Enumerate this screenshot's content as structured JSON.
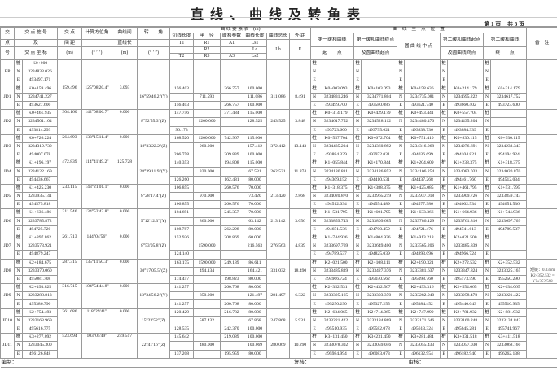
{
  "title": "直线、曲线及转角表",
  "page": {
    "current": "第 1 页",
    "total": "共 3 页"
  },
  "header": {
    "jiao": "交",
    "dian": "点",
    "hao": "号",
    "stake_title": "交 点 桩 号",
    "stake_mid": "及",
    "stake_sub": "交 点 坐 标",
    "dist_title": "交 点",
    "dist_mid": "间 距",
    "dist_unit": "(m)",
    "az_title": "计算方位角",
    "az_unit": "(° ′ ″)",
    "straight_title": "曲线间",
    "straight_mid": "直线长",
    "straight_unit": "(m)",
    "angle_title": "转　　角",
    "angle_unit": "(° ′ ″)",
    "elements_title": "曲 线 要 素 表　(m)",
    "tangent": "切线长度",
    "radius": "半　径",
    "param": "缓和参数",
    "curve_len": "曲线长度",
    "total_len": "曲线总长",
    "external": "外 距",
    "T1": "T1",
    "T2": "T2",
    "R1": "R1",
    "R2": "R2",
    "R3": "R3",
    "A1": "A1",
    "A3": "A3",
    "Ls1": "Ls1",
    "Lc": "Lc",
    "Ls2": "Ls2",
    "Lh": "Lh",
    "E": "E",
    "points_title": "曲　线　主　点　位　置",
    "p1_title": "第一缓和曲线",
    "p1_sub": "起　　点",
    "p2_title": "第一缓和曲线终点",
    "p2_sub": "及圆曲线起点",
    "p3_title": "圆 曲 线 中 点",
    "p4_title": "第二缓和曲线起点",
    "p4_sub": "及圆曲线终点",
    "p5_title": "第二缓和曲线",
    "p5_sub": "终　　点",
    "remark": "备　注"
  },
  "labels": {
    "stake": "桩",
    "n": "N",
    "e": "E"
  },
  "jds": [
    {
      "id": "BP",
      "stake": "K0+000",
      "n": "3234833.026",
      "e": "493497.171",
      "dist": "",
      "az": "",
      "straight": "",
      "angle": "",
      "T1": "",
      "R1": "",
      "A1": "",
      "Ls1": "",
      "R2": "",
      "Lc": "",
      "Lh": "",
      "E": "",
      "T2": "",
      "R3": "",
      "A3": "",
      "Ls2": "",
      "points": [
        [
          "",
          "",
          ""
        ],
        [
          "",
          "",
          ""
        ],
        [
          "",
          "",
          ""
        ],
        [
          "",
          "",
          ""
        ],
        [
          "",
          "",
          ""
        ]
      ],
      "remark": "",
      "showLabels": true
    },
    {
      "id": "JD1",
      "stake": "K0+159.496",
      "n": "3234741.227",
      "e": "493627.600",
      "dist": "159.496",
      "az": "125°08'20.4\"",
      "straight": "3.093",
      "angle": "16°59'46.2\"(Y)",
      "T1": "156.403",
      "R1": "",
      "A1": "266.757",
      "Ls1": "100.000",
      "R2": "711.593",
      "Lc": "111.086",
      "Lh": "311.086",
      "E": "8.491",
      "T2": "156.403",
      "R3": "",
      "A3": "266.757",
      "Ls2": "100.000",
      "points": [
        [
          "K0+003.093",
          "3234831.246",
          "493499.700"
        ],
        [
          "K0+103.093",
          "3234771.804",
          "493580.086"
        ],
        [
          "K0+158.636",
          "3234735.081",
          "493621.740"
        ],
        [
          "K0+214.179",
          "3234695.222",
          "493660.402"
        ],
        [
          "K0+314.179",
          "3234617.752",
          "493723.600"
        ]
      ],
      "remark": ""
    },
    {
      "id": "JD2",
      "stake": "K0+461.935",
      "n": "3234501.104",
      "e": "493814.293",
      "dist": "304.160",
      "az": "142°08'06.7\"",
      "straight": "0.000",
      "angle": "8°52'55.3\"(Z)",
      "T1": "147.756",
      "R1": "",
      "A1": "371.484",
      "Ls1": "115.000",
      "R2": "1200.000",
      "Lc": "128.525",
      "Lh": "243.525",
      "E": "3.848",
      "T2": "96.173",
      "R3": "",
      "A3": "",
      "Ls2": "",
      "points": [
        [
          "K0+314.179",
          "3234617.752",
          "493723.600"
        ],
        [
          "K0+429.179",
          "3234528.112",
          "493795.621"
        ],
        [
          "K0+493.441",
          "3234480.470",
          "493838.736"
        ],
        [
          "K0+557.704",
          "3234435.204",
          "493884.339"
        ],
        [
          "",
          "",
          ""
        ]
      ],
      "remark": ""
    },
    {
      "id": "JD3",
      "stake": "K0+726.224",
      "n": "3234319.730",
      "e": "494007.078",
      "dist": "264.693",
      "az": "133°15'11.4\"",
      "straight": "0.000",
      "angle": "18°33'22.2\"(Z)",
      "T1": "168.520",
      "R1": "1200.000",
      "A1": "742.967",
      "Ls1": "115.000",
      "R2": "960.000",
      "Lc": "157.412",
      "Lh": "372.412",
      "E": "13.143",
      "T2": "206.758",
      "R3": "",
      "A3": "309.839",
      "Ls2": "100.000",
      "points": [
        [
          "K0+557.704",
          "3234435.204",
          "493884.339"
        ],
        [
          "K0+672.704",
          "3234360.892",
          "493972.031"
        ],
        [
          "K0+751.410",
          "3234316.068",
          "494036.699"
        ],
        [
          "K0+830.115",
          "3234276.691",
          "494104.821"
        ],
        [
          "K0+930.115",
          "3234233.343",
          "494194.924"
        ]
      ],
      "remark": ""
    },
    {
      "id": "JD4",
      "stake": "K1+196.197",
      "n": "3234122.169",
      "e": "494436.667",
      "dist": "472.839",
      "az": "114°41'49.2\"",
      "straight": "125.728",
      "angle": "28°39'11.9\"(Y)",
      "T1": "140.353",
      "R1": "",
      "A1": "194.808",
      "Ls1": "115.000",
      "R2": "330.000",
      "Lc": "67.531",
      "Lh": "262.531",
      "E": "11.874",
      "T2": "126.260",
      "R3": "",
      "A3": "162.481",
      "Ls2": "80.000",
      "points": [
        [
          "K1+055.844",
          "3234180.811",
          "494309.152"
        ],
        [
          "K1+170.844",
          "3234126.852",
          "494410.531"
        ],
        [
          "K1+204.609",
          "3234106.254",
          "494437.268"
        ],
        [
          "K1+238.375",
          "3234083.033",
          "494461.760"
        ],
        [
          "K1+318.375",
          "3234020.870",
          "494512.034"
        ]
      ],
      "remark": ""
    },
    {
      "id": "JD5",
      "stake": "K1+425.230",
      "n": "3233935.141",
      "e": "494575.818",
      "dist": "233.115",
      "az": "143°21'01.1\"",
      "straight": "0.000",
      "angle": "8°28'17.4\"(Z)",
      "T1": "106.855",
      "R1": "",
      "A1": "260.576",
      "Ls1": "70.000",
      "R2": "970.000",
      "Lc": "73.420",
      "Lh": "213.420",
      "E": "2.868",
      "T2": "106.855",
      "R3": "",
      "A3": "260.576",
      "Ls2": "70.000",
      "points": [
        [
          "K1+318.375",
          "3234020.870",
          "494512.034"
        ],
        [
          "K1+388.375",
          "3233965.219",
          "494554.489"
        ],
        [
          "K1+425.085",
          "3233937.018",
          "494577.986"
        ],
        [
          "K1+461.795",
          "3233909.726",
          "494602.534"
        ],
        [
          "K1+531.795",
          "3233859.743",
          "494651.536"
        ]
      ],
      "remark": ""
    },
    {
      "id": "JD6",
      "stake": "K1+636.486",
      "n": "3233785.872",
      "e": "494725.720",
      "dist": "211.546",
      "az": "134°52'43.8\"",
      "straight": "0.000",
      "angle": "9°12'12.3\"(Y)",
      "T1": "104.691",
      "R1": "",
      "A1": "245.357",
      "Ls1": "70.000",
      "R2": "860.000",
      "Lc": "63.142",
      "Lh": "213.142",
      "E": "3.056",
      "T2": "108.787",
      "R3": "",
      "A3": "262.298",
      "Ls2": "80.000",
      "points": [
        [
          "K1+531.795",
          "3233859.743",
          "494651.536"
        ],
        [
          "K1+601.795",
          "3233809.685",
          "494700.459"
        ],
        [
          "K1+633.366",
          "3233786.129",
          "494721.476"
        ],
        [
          "K1+664.936",
          "3233761.816",
          "494741.613"
        ],
        [
          "K1+744.936",
          "3233697.769",
          "494789.537"
        ]
      ],
      "remark": ""
    },
    {
      "id": "JD7",
      "stake": "K1+897.862",
      "n": "3233573.921",
      "e": "494879.247",
      "dist": "261.713",
      "az": "144°04'56\"",
      "straight": "0.000",
      "angle": "8°53'05.8\"(Z)",
      "T1": "152.926",
      "R1": "",
      "A1": "308.869",
      "Ls1": "60.000",
      "R2": "1590.000",
      "Lc": "216.563",
      "Lh": "276.563",
      "E": "4.839",
      "T2": "124.140",
      "R3": "",
      "A3": "",
      "Ls2": "",
      "points": [
        [
          "K1+744.936",
          "3233697.769",
          "494789.537"
        ],
        [
          "K1+804.936",
          "3233649.400",
          "494825.039"
        ],
        [
          "K1+913.218",
          "3233565.206",
          "494893.096"
        ],
        [
          "K2+021.500",
          "3233485.839",
          "494966.724"
        ],
        [
          "",
          "",
          ""
        ]
      ],
      "remark": ""
    },
    {
      "id": "JD8",
      "stake": "K2+184.675",
      "n": "3233370.060",
      "e": "495081.708",
      "dist": "287.315",
      "az": "135°11'50.3\"",
      "straight": "0.000",
      "angle": "30°17'05.5\"(Z)",
      "T1": "163.175",
      "R1": "1590.000",
      "A1": "249.189",
      "Ls1": "86.611",
      "R2": "494.134",
      "Lc": "164.421",
      "Lh": "331.032",
      "E": "18.490",
      "T2": "174.457",
      "R3": "",
      "A3": "198.823",
      "Ls2": "80.000",
      "points": [
        [
          "K2+021.500",
          "3233485.839",
          "494966.724"
        ],
        [
          "K2+108.111",
          "3233427.376",
          "495030.562"
        ],
        [
          "K2+190.321",
          "3233381.637",
          "495098.760"
        ],
        [
          "K2+272.532",
          "3233347.824",
          "495173.590"
        ],
        [
          "K2+352.532",
          "3233325.165",
          "495250.290"
        ]
      ],
      "remark": "短链：0.036m K2+352.532 = K2+352.568"
    },
    {
      "id": "JD9",
      "stake": "K2+493.825",
      "n": "3233288.813",
      "e": "495386.790",
      "dist": "316.715",
      "az": "104°54'44.8\"",
      "straight": "0.000",
      "angle": "13°34'56.2\"(Y)",
      "T1": "141.257",
      "R1": "",
      "A1": "260.768",
      "Ls1": "80.000",
      "R2": "850.000",
      "Lc": "121.497",
      "Lh": "281.497",
      "E": "6.322",
      "T2": "141.257",
      "R3": "",
      "A3": "260.768",
      "Ls2": "80.000",
      "points": [
        [
          "K2+352.531",
          "3233325.165",
          "495250.290"
        ],
        [
          "K2+432.567",
          "3233303.370",
          "495327.255"
        ],
        [
          "K2+493.316",
          "3233282.940",
          "495384.452"
        ],
        [
          "K2+554.065",
          "3233258.478",
          "495440.043"
        ],
        [
          "K2+634.065",
          "3233221.422",
          "495510.935"
        ]
      ],
      "remark": ""
    },
    {
      "id": "JD10",
      "stake": "K2+754.493",
      "n": "3233163.969",
      "e": "495616.775",
      "dist": "261.686",
      "az": "118°29'41\"",
      "straight": "0.000",
      "angle": "15°23'52\"(Z)",
      "T1": "120.429",
      "R1": "",
      "A1": "216.782",
      "Ls1": "80.000",
      "R2": "587.432",
      "Lc": "67.868",
      "Lh": "247.868",
      "E": "5.931",
      "T2": "128.535",
      "R3": "",
      "A3": "242.370",
      "Ls2": "100.000",
      "points": [
        [
          "K2+634.065",
          "3233221.422",
          "495510.935"
        ],
        [
          "K2+714.065",
          "3233184.869",
          "495582.078"
        ],
        [
          "K2+747.999",
          "3233171.646",
          "495613.324"
        ],
        [
          "K2+781.932",
          "3233160.248",
          "495645.281"
        ],
        [
          "K2+881.932",
          "3233134.843",
          "495741.967"
        ]
      ],
      "remark": ""
    },
    {
      "id": "JD11",
      "stake": "K3+277.092",
      "n": "3233045.300",
      "e": "496126.848",
      "dist": "523.694",
      "az": "103°05'49\"",
      "straight": "249.517",
      "angle": "22°41'16\"(Z)",
      "T1": "145.642",
      "R1": "",
      "A1": "219.089",
      "Ls1": "100.000",
      "R2": "480.000",
      "Lc": "100.069",
      "Lh": "280.069",
      "E": "10.290",
      "T2": "137.208",
      "R3": "",
      "A3": "195.959",
      "Ls2": "80.000",
      "points": [
        [
          "K3+131.450",
          "3233078.302",
          "495984.994"
        ],
        [
          "K3+231.450",
          "3233059.046",
          "496083.073"
        ],
        [
          "K3+281.484",
          "3233055.433",
          "496132.954"
        ],
        [
          "K3+331.518",
          "3233057.030",
          "496182.940"
        ],
        [
          "K3+411.518",
          "3233068.160",
          "496262.138"
        ]
      ],
      "remark": ""
    }
  ],
  "footer": {
    "compiled": "编制：",
    "checked": "复核：",
    "reviewed": "审核："
  }
}
